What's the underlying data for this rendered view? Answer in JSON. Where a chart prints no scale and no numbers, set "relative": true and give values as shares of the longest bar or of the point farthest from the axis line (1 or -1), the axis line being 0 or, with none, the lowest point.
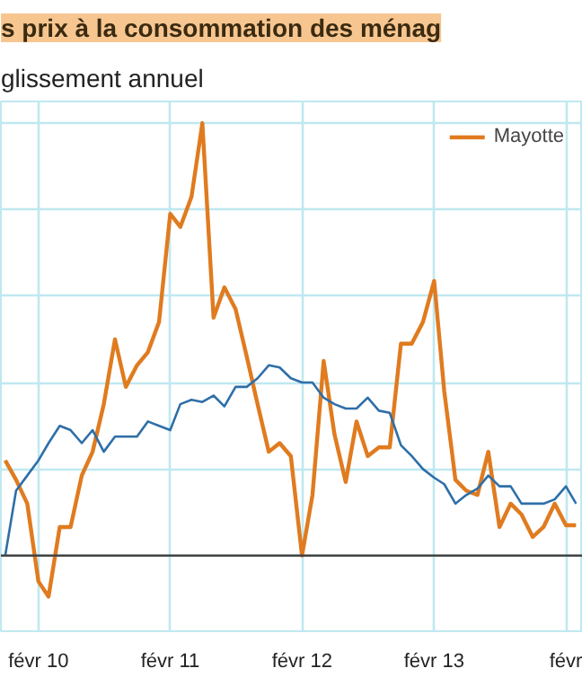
{
  "chart_data": {
    "type": "line",
    "title": "s prix à la consommation des ménag",
    "subtitle": "glissement annuel",
    "relative": true,
    "grid": true,
    "legend": "top right",
    "xlim": [
      "2009-10-20",
      "2014-03-20"
    ],
    "xticks": [
      {
        "value": "2010-02",
        "label": "févr 10"
      },
      {
        "value": "2011-02",
        "label": "févr 11"
      },
      {
        "value": "2012-02",
        "label": "févr 12"
      },
      {
        "value": "2013-02",
        "label": "févr 13"
      },
      {
        "value": "2014-02",
        "label": "févr"
      }
    ],
    "series": [
      {
        "name": "Mayotte",
        "color": "#e07b1f",
        "x": [
          "2009-11",
          "2009-12",
          "2010-01",
          "2010-02",
          "2010-03",
          "2010-04",
          "2010-05",
          "2010-06",
          "2010-07",
          "2010-08",
          "2010-09",
          "2010-10",
          "2010-11",
          "2010-12",
          "2011-01",
          "2011-02",
          "2011-03",
          "2011-04",
          "2011-05",
          "2011-06",
          "2011-07",
          "2011-08",
          "2011-09",
          "2011-10",
          "2011-11",
          "2011-12",
          "2012-01",
          "2012-02",
          "2012-03",
          "2012-04",
          "2012-05",
          "2012-06",
          "2012-07",
          "2012-08",
          "2012-09",
          "2012-10",
          "2012-11",
          "2012-12",
          "2013-01",
          "2013-02",
          "2013-03",
          "2013-04",
          "2013-05",
          "2013-06",
          "2013-07",
          "2013-08",
          "2013-09",
          "2013-10",
          "2013-11",
          "2013-12",
          "2014-01",
          "2014-02",
          "2014-03"
        ],
        "values": [
          0.22,
          0.175,
          0.12,
          -0.06,
          -0.095,
          0.066,
          0.066,
          0.185,
          0.24,
          0.35,
          0.5,
          0.39,
          0.44,
          0.47,
          0.54,
          0.79,
          0.76,
          0.83,
          1.0,
          0.55,
          0.62,
          0.57,
          0.46,
          0.35,
          0.24,
          0.26,
          0.23,
          0.0,
          0.14,
          0.45,
          0.28,
          0.17,
          0.31,
          0.23,
          0.25,
          0.25,
          0.49,
          0.49,
          0.54,
          0.635,
          0.38,
          0.175,
          0.15,
          0.14,
          0.24,
          0.066,
          0.12,
          0.095,
          0.043,
          0.066,
          0.12,
          0.07,
          0.07
        ]
      },
      {
        "color": "#2e6fa8",
        "x": [
          "2009-11",
          "2009-12",
          "2010-01",
          "2010-02",
          "2010-03",
          "2010-04",
          "2010-05",
          "2010-06",
          "2010-07",
          "2010-08",
          "2010-09",
          "2010-10",
          "2010-11",
          "2010-12",
          "2011-01",
          "2011-02",
          "2011-03",
          "2011-04",
          "2011-05",
          "2011-06",
          "2011-07",
          "2011-08",
          "2011-09",
          "2011-10",
          "2011-11",
          "2011-12",
          "2012-01",
          "2012-02",
          "2012-03",
          "2012-04",
          "2012-05",
          "2012-06",
          "2012-07",
          "2012-08",
          "2012-09",
          "2012-10",
          "2012-11",
          "2012-12",
          "2013-01",
          "2013-02",
          "2013-03",
          "2013-04",
          "2013-05",
          "2013-06",
          "2013-07",
          "2013-08",
          "2013-09",
          "2013-10",
          "2013-11",
          "2013-12",
          "2014-01",
          "2014-02",
          "2014-03"
        ],
        "values": [
          0.0,
          0.15,
          0.185,
          0.22,
          0.26,
          0.3,
          0.29,
          0.26,
          0.29,
          0.24,
          0.275,
          0.275,
          0.275,
          0.31,
          0.3,
          0.29,
          0.35,
          0.36,
          0.355,
          0.37,
          0.345,
          0.39,
          0.39,
          0.41,
          0.44,
          0.435,
          0.41,
          0.4,
          0.4,
          0.365,
          0.35,
          0.34,
          0.34,
          0.365,
          0.335,
          0.33,
          0.255,
          0.23,
          0.2,
          0.18,
          0.165,
          0.12,
          0.14,
          0.155,
          0.185,
          0.16,
          0.16,
          0.12,
          0.12,
          0.12,
          0.13,
          0.16,
          0.12
        ]
      }
    ]
  }
}
